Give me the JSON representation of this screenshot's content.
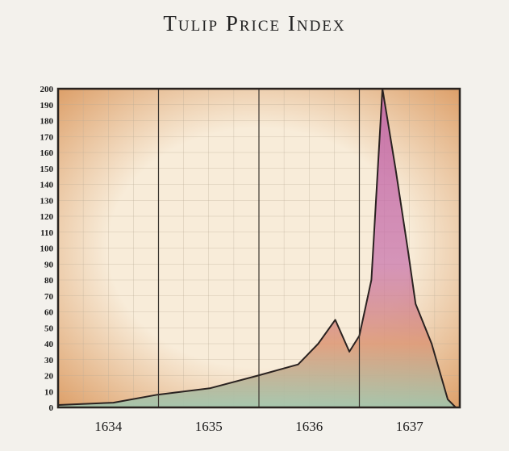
{
  "chart_data": {
    "type": "area",
    "title": "Tulip Price Index",
    "xlabel": "",
    "ylabel": "",
    "xlim": [
      1634,
      1638
    ],
    "ylim": [
      0,
      200
    ],
    "yticks": [
      0,
      10,
      20,
      30,
      40,
      50,
      60,
      70,
      80,
      90,
      100,
      110,
      120,
      130,
      140,
      150,
      160,
      170,
      180,
      190,
      200
    ],
    "xtick_labels": [
      "1634",
      "1635",
      "1636",
      "1637"
    ],
    "grid": true,
    "x": [
      1634.0,
      1634.55,
      1634.99,
      1635.51,
      1635.99,
      1636.39,
      1636.59,
      1636.76,
      1636.9,
      1637.0,
      1637.12,
      1637.23,
      1637.36,
      1637.48,
      1637.56,
      1637.72,
      1637.88,
      1637.96
    ],
    "y": [
      1.5,
      3,
      8,
      12,
      20,
      27,
      40,
      55,
      35,
      45,
      80,
      200,
      150,
      100,
      65,
      40,
      5,
      0
    ],
    "colors": {
      "top": "#c46aa8",
      "mid": "#dd9a78",
      "bottom": "#9fc6ae",
      "line": "#2a2220",
      "plot_bg": "#f7e6cc",
      "edge": "#d9955a"
    }
  }
}
